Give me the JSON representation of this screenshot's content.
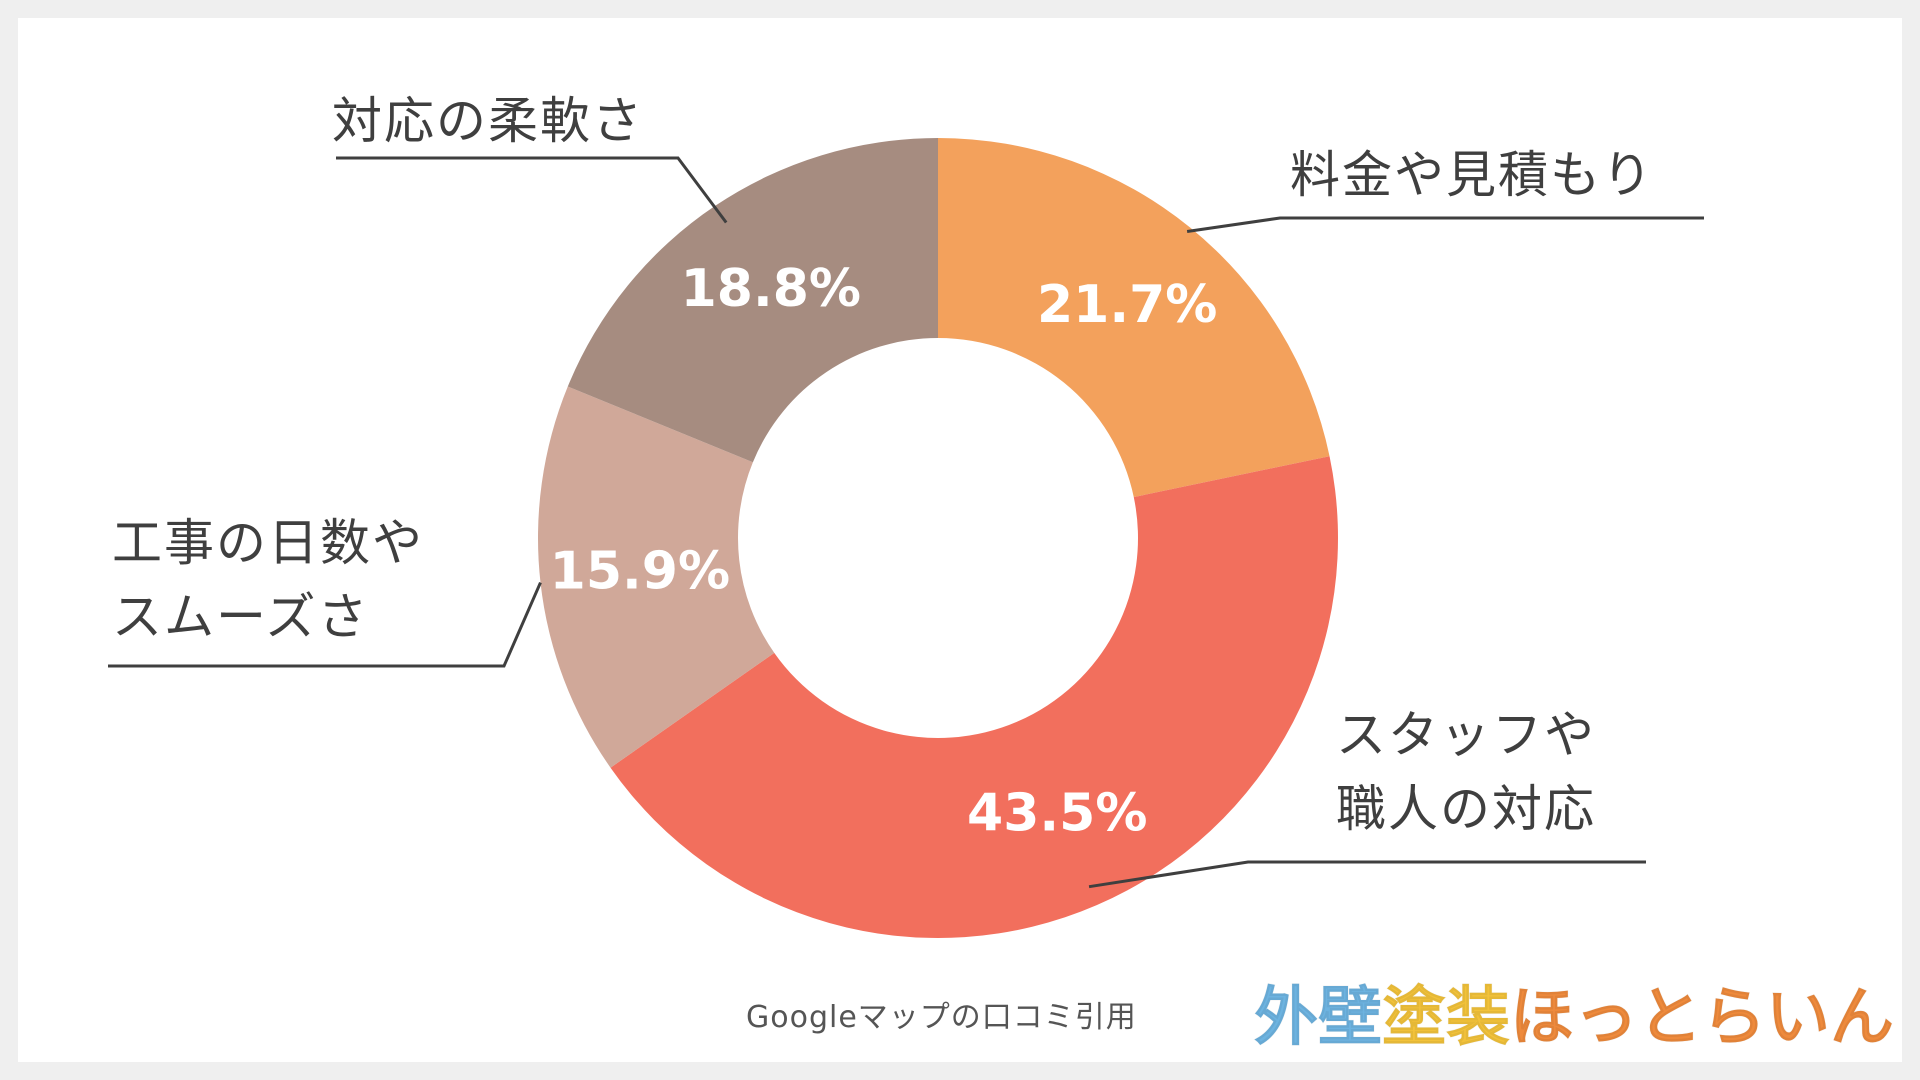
{
  "chart_data": {
    "type": "pie",
    "donut": true,
    "categories": [
      "料金や見積もり",
      "スタッフや職人の対応",
      "工事の日数やスムーズさ",
      "対応の柔軟さ"
    ],
    "values": [
      21.7,
      43.5,
      15.9,
      18.8
    ],
    "value_labels": [
      "21.7%",
      "43.5%",
      "15.9%",
      "18.8%"
    ],
    "colors": [
      "#f3a15c",
      "#f26f5d",
      "#d0a899",
      "#a68c80"
    ],
    "label_lines": [
      [
        "料金や見積もり"
      ],
      [
        "スタッフや",
        "職人の対応"
      ],
      [
        "工事の日数や",
        "スムーズさ"
      ],
      [
        "対応の柔軟さ"
      ]
    ],
    "leader_line_color": "#3f3f3f"
  },
  "source_note": "Googleマップの口コミ引用",
  "brand": {
    "parts": [
      {
        "text": "外壁",
        "color": "#6db3e0"
      },
      {
        "text": "塗装",
        "color": "#f2c23a"
      },
      {
        "text": "ほっとらいん",
        "color": "#ee8a3c"
      }
    ]
  }
}
